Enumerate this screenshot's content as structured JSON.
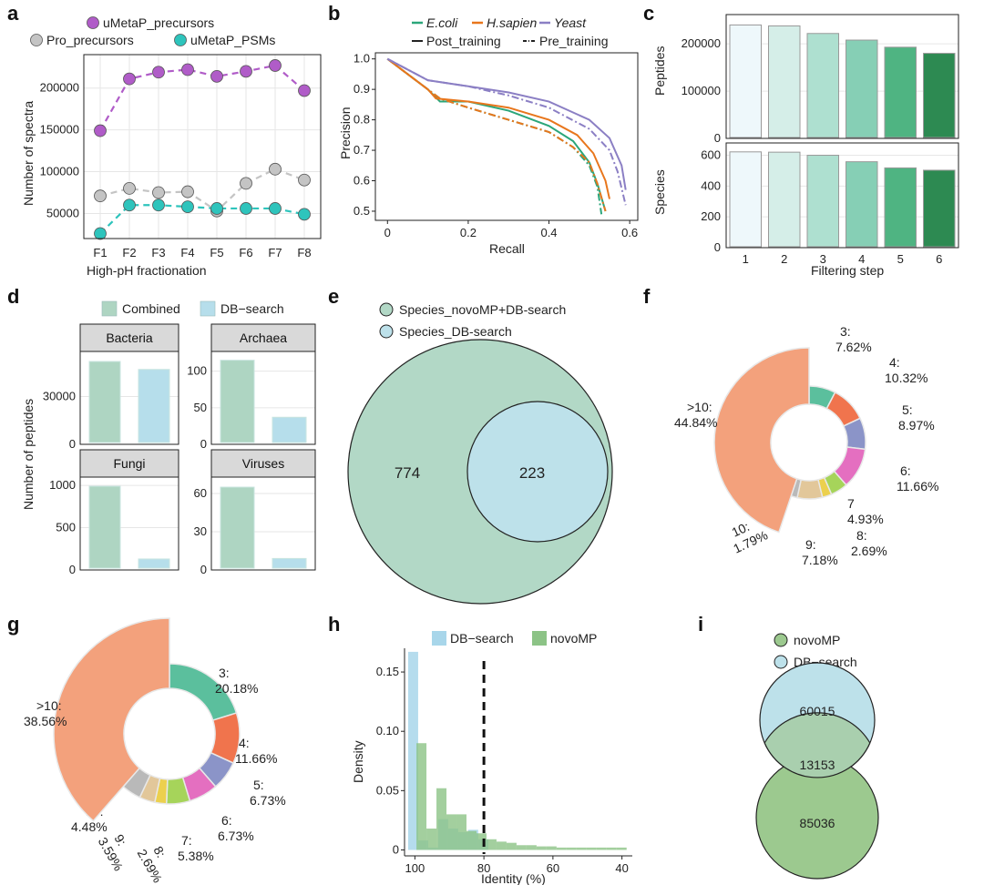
{
  "panel_labels": [
    "a",
    "b",
    "c",
    "d",
    "e",
    "f",
    "g",
    "h",
    "i"
  ],
  "chart_data": [
    {
      "panel": "a",
      "type": "line",
      "xlabel": "High-pH fractionation",
      "ylabel": "Number of spectra",
      "categories": [
        "F1",
        "F2",
        "F3",
        "F4",
        "F5",
        "F6",
        "F7",
        "F8"
      ],
      "ylim": [
        20000,
        240000
      ],
      "yticks": [
        50000,
        100000,
        150000,
        200000
      ],
      "ytick_labels": [
        "50000",
        "100000",
        "150000",
        "200000"
      ],
      "series": [
        {
          "name": "uMetaP_precursors",
          "color": "#b05cc8",
          "values": [
            149000,
            211000,
            219000,
            222000,
            214000,
            220000,
            227000,
            197000
          ]
        },
        {
          "name": "Pro_precursors",
          "color": "#c4c4c4",
          "values": [
            71000,
            80000,
            75000,
            76000,
            53000,
            86000,
            103000,
            90000
          ]
        },
        {
          "name": "uMetaP_PSMs",
          "color": "#2ec4bc",
          "values": [
            26000,
            60000,
            60000,
            58000,
            56000,
            56000,
            56000,
            49000
          ]
        }
      ]
    },
    {
      "panel": "b",
      "type": "line",
      "xlabel": "Recall",
      "ylabel": "Precision",
      "xlim": [
        -0.03,
        0.62
      ],
      "ylim": [
        0.47,
        1.02
      ],
      "xticks": [
        0,
        0.2,
        0.4,
        0.6
      ],
      "xtick_labels": [
        "0",
        "0.2",
        "0.4",
        "0.6"
      ],
      "yticks": [
        0.5,
        0.6,
        0.7,
        0.8,
        0.9,
        1.0
      ],
      "ytick_labels": [
        "0.5",
        "0.6",
        "0.7",
        "0.8",
        "0.9",
        "1.0"
      ],
      "legend": {
        "species": [
          "E.coli",
          "H.sapien",
          "Yeast"
        ],
        "styles": [
          "Post_training",
          "Pre_training"
        ]
      },
      "series": [
        {
          "name": "E.coli",
          "style": "Post_training",
          "color": "#2ba67a",
          "x": [
            0,
            0.1,
            0.13,
            0.2,
            0.3,
            0.4,
            0.46,
            0.5,
            0.52,
            0.54
          ],
          "y": [
            1,
            0.9,
            0.86,
            0.86,
            0.83,
            0.78,
            0.73,
            0.66,
            0.59,
            0.5
          ]
        },
        {
          "name": "E.coli",
          "style": "Pre_training",
          "color": "#2ba67a",
          "x": [
            0,
            0.1,
            0.13,
            0.2,
            0.3,
            0.4,
            0.46,
            0.5,
            0.52,
            0.53
          ],
          "y": [
            1,
            0.9,
            0.87,
            0.84,
            0.8,
            0.76,
            0.71,
            0.65,
            0.58,
            0.49
          ]
        },
        {
          "name": "H.sapien",
          "style": "Post_training",
          "color": "#e8761c",
          "x": [
            0,
            0.1,
            0.12,
            0.2,
            0.3,
            0.4,
            0.47,
            0.51,
            0.54,
            0.55
          ],
          "y": [
            1,
            0.9,
            0.87,
            0.86,
            0.84,
            0.8,
            0.75,
            0.69,
            0.6,
            0.54
          ]
        },
        {
          "name": "H.sapien",
          "style": "Pre_training",
          "color": "#e8761c",
          "x": [
            0,
            0.1,
            0.13,
            0.2,
            0.3,
            0.4,
            0.46,
            0.5,
            0.52,
            0.54
          ],
          "y": [
            1,
            0.9,
            0.87,
            0.84,
            0.8,
            0.76,
            0.71,
            0.66,
            0.59,
            0.5
          ]
        },
        {
          "name": "Yeast",
          "style": "Post_training",
          "color": "#8b7fc4",
          "x": [
            0,
            0.1,
            0.2,
            0.3,
            0.4,
            0.5,
            0.55,
            0.58,
            0.59
          ],
          "y": [
            1,
            0.93,
            0.91,
            0.89,
            0.86,
            0.8,
            0.74,
            0.65,
            0.57
          ]
        },
        {
          "name": "Yeast",
          "style": "Pre_training",
          "color": "#8b7fc4",
          "x": [
            0,
            0.1,
            0.2,
            0.3,
            0.4,
            0.5,
            0.55,
            0.57,
            0.59
          ],
          "y": [
            1,
            0.93,
            0.91,
            0.88,
            0.84,
            0.77,
            0.7,
            0.63,
            0.52
          ]
        }
      ]
    },
    {
      "panel": "c",
      "type": "bar",
      "xlabel": "Filtering step",
      "categories": [
        "1",
        "2",
        "3",
        "4",
        "5",
        "6"
      ],
      "colors": [
        "#eef8fb",
        "#d5eee8",
        "#aee0d0",
        "#86cfb5",
        "#4fb482",
        "#2d8a52"
      ],
      "facets": [
        {
          "ylabel": "Peptides",
          "values": [
            240000,
            238000,
            222000,
            208000,
            193000,
            180000
          ],
          "ylim": [
            0,
            262000
          ],
          "yticks": [
            0,
            100000,
            200000
          ],
          "ytick_labels": [
            "0",
            "100000",
            "200000"
          ]
        },
        {
          "ylabel": "Species",
          "values": [
            622,
            620,
            600,
            558,
            518,
            503
          ],
          "ylim": [
            0,
            680
          ],
          "yticks": [
            0,
            200,
            400,
            600
          ],
          "ytick_labels": [
            "0",
            "200",
            "400",
            "600"
          ]
        }
      ]
    },
    {
      "panel": "d",
      "type": "bar",
      "ylabel": "Number of peptides",
      "legend": [
        {
          "name": "Combined",
          "color": "#aed5c2"
        },
        {
          "name": "DB−search",
          "color": "#b6deeb"
        }
      ],
      "facets": [
        {
          "title": "Bacteria",
          "values": [
            52000,
            47000
          ],
          "ylim": [
            0,
            56000
          ],
          "yticks": [
            0,
            30000
          ],
          "ytick_labels": [
            "0",
            "30000"
          ]
        },
        {
          "title": "Archaea",
          "values": [
            115,
            37
          ],
          "ylim": [
            0,
            122
          ],
          "yticks": [
            0,
            50,
            100
          ],
          "ytick_labels": [
            "0",
            "50",
            "100"
          ]
        },
        {
          "title": "Fungi",
          "values": [
            990,
            130
          ],
          "ylim": [
            0,
            1055
          ],
          "yticks": [
            0,
            500,
            1000
          ],
          "ytick_labels": [
            "0",
            "500",
            "1000"
          ]
        },
        {
          "title": "Viruses",
          "values": [
            65,
            9
          ],
          "ylim": [
            0,
            70
          ],
          "yticks": [
            0,
            30,
            60
          ],
          "ytick_labels": [
            "0",
            "30",
            "60"
          ]
        }
      ]
    },
    {
      "panel": "e",
      "type": "venn",
      "legend": [
        {
          "name": "Species_novoMP+DB-search",
          "color": "#b2d8c6"
        },
        {
          "name": "Species_DB-search",
          "color": "#bde1ea"
        }
      ],
      "outer_count": "774",
      "inner_count": "223"
    },
    {
      "panel": "f",
      "type": "pie",
      "slices": [
        {
          "label": "3:",
          "value": "7.62%",
          "pct": 7.62,
          "color": "#5bbf9d"
        },
        {
          "label": "4:",
          "value": "10.32%",
          "pct": 10.32,
          "color": "#f0744d"
        },
        {
          "label": "5:",
          "value": "8.97%",
          "pct": 8.97,
          "color": "#8b94c8"
        },
        {
          "label": "6:",
          "value": "11.66%",
          "pct": 11.66,
          "color": "#e46fc0"
        },
        {
          "label": "7",
          "value": "4.93%",
          "pct": 4.93,
          "color": "#a6d45a"
        },
        {
          "label": "8:",
          "value": "2.69%",
          "pct": 2.69,
          "color": "#ecd04e"
        },
        {
          "label": "9:",
          "value": "7.18%",
          "pct": 7.18,
          "color": "#e2c79a"
        },
        {
          "label": "10:",
          "value": "1.79%",
          "pct": 1.79,
          "color": "#b9b9b9"
        },
        {
          "label": ">10:",
          "value": "44.84%",
          "pct": 44.84,
          "color": "#f3a17c"
        }
      ]
    },
    {
      "panel": "g",
      "type": "pie",
      "slices": [
        {
          "label": "3:",
          "value": "20.18%",
          "pct": 20.18,
          "color": "#5bbf9d"
        },
        {
          "label": "4:",
          "value": "11.66%",
          "pct": 11.66,
          "color": "#f0744d"
        },
        {
          "label": "5:",
          "value": "6.73%",
          "pct": 6.73,
          "color": "#8b94c8"
        },
        {
          "label": "6:",
          "value": "6.73%",
          "pct": 6.73,
          "color": "#e46fc0"
        },
        {
          "label": "7:",
          "value": "5.38%",
          "pct": 5.38,
          "color": "#a6d45a"
        },
        {
          "label": "8:",
          "value": "2.69%",
          "pct": 2.69,
          "color": "#ecd04e"
        },
        {
          "label": "9:",
          "value": "3.59%",
          "pct": 3.59,
          "color": "#e2c79a"
        },
        {
          "label": "10:",
          "value": "4.48%",
          "pct": 4.48,
          "color": "#b9b9b9"
        },
        {
          "label": ">10:",
          "value": "38.56%",
          "pct": 38.56,
          "color": "#f3a17c"
        }
      ]
    },
    {
      "panel": "h",
      "type": "histogram",
      "xlabel": "Identity (%)",
      "ylabel": "Density",
      "xlim": [
        103,
        37
      ],
      "ylim": [
        -0.005,
        0.17
      ],
      "xticks": [
        100,
        80,
        60,
        40
      ],
      "xtick_labels": [
        "100",
        "80",
        "60",
        "40"
      ],
      "yticks": [
        0,
        0.05,
        0.1,
        0.15
      ],
      "ytick_labels": [
        "0",
        "0.05",
        "0.10",
        "0.15"
      ],
      "threshold": 80,
      "bin_width": 2.9,
      "series": [
        {
          "name": "DB−search",
          "color": "#a8d6ea",
          "bins": [
            100.5,
            97.6,
            94.7,
            91.8,
            88.9,
            86.0,
            83.1,
            80.2
          ],
          "values": [
            0.167,
            0.008,
            0.002,
            0.026,
            0.018,
            0.015,
            0.017,
            0.009
          ]
        },
        {
          "name": "novoMP",
          "color": "#8cc386",
          "bins": [
            98.1,
            95.2,
            92.3,
            89.4,
            86.5,
            83.6,
            80.7,
            77.8,
            74.9,
            72.0,
            69.1,
            66.2,
            63.3,
            60.4,
            57.5,
            54.6,
            51.7,
            48.8,
            45.9,
            43.0,
            40.1
          ],
          "values": [
            0.09,
            0.018,
            0.052,
            0.03,
            0.03,
            0.016,
            0.014,
            0.009,
            0.007,
            0.006,
            0.004,
            0.004,
            0.003,
            0.003,
            0.002,
            0.002,
            0.002,
            0.002,
            0.002,
            0.002,
            0.002
          ]
        }
      ]
    },
    {
      "panel": "i",
      "type": "venn",
      "legend": [
        {
          "name": "novoMP",
          "color": "#9cc98f"
        },
        {
          "name": "DB−search",
          "color": "#bde1ea"
        }
      ],
      "top_count": "60015",
      "overlap_count": "13153",
      "bottom_count": "85036"
    }
  ]
}
